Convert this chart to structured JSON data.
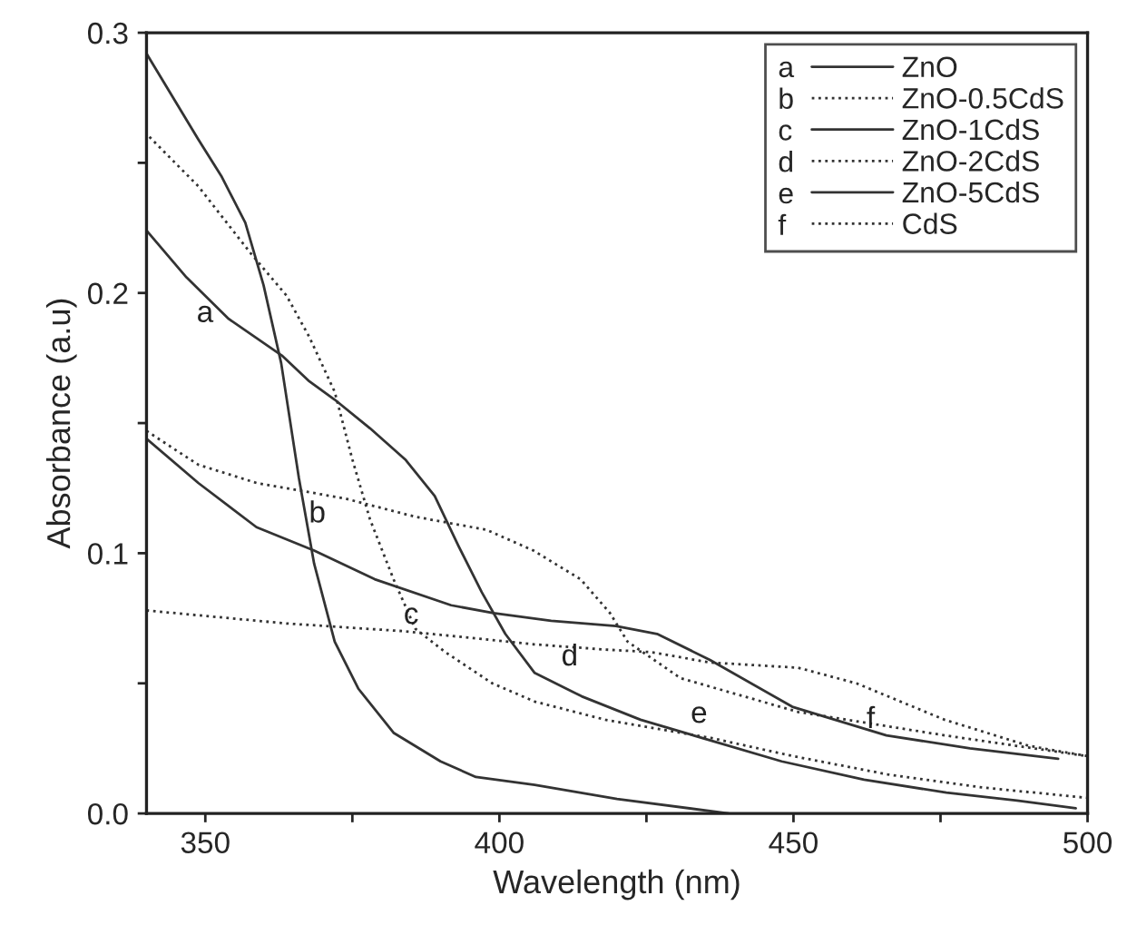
{
  "chart_data": {
    "type": "line",
    "xlabel": "Wavelength (nm)",
    "ylabel": "Absorbance (a.u)",
    "xlim": [
      340,
      500
    ],
    "ylim": [
      0,
      0.3
    ],
    "xticks": [
      350,
      {
        "value": 375,
        "label": null
      },
      400,
      {
        "value": 425,
        "label": null
      },
      450,
      {
        "value": 475,
        "label": null
      },
      500
    ],
    "yticks": [
      {
        "value": 0,
        "label": "0.0"
      },
      {
        "value": 0.05,
        "label": null
      },
      0.1,
      {
        "value": 0.15,
        "label": null
      },
      0.2,
      {
        "value": 0.25,
        "label": null
      },
      0.3
    ],
    "grid": false,
    "legend": "top right",
    "marker": "none",
    "annotations": [
      {
        "text": "a",
        "x": 346.8,
        "y": 0.206
      },
      {
        "text": "b",
        "x": 365.9,
        "y": 0.129
      },
      {
        "text": "c",
        "x": 382,
        "y": 0.09
      },
      {
        "text": "d",
        "x": 408.8,
        "y": 0.074
      },
      {
        "text": "e",
        "x": 430.8,
        "y": 0.052
      },
      {
        "text": "f",
        "x": 460.7,
        "y": 0.05
      }
    ],
    "series": [
      {
        "name": "ZnO",
        "color": "#333333",
        "line_style": "solid",
        "x": [
          340,
          346.8,
          354,
          363,
          367.7,
          372,
          378,
          384,
          389,
          393,
          397,
          401,
          406,
          414,
          424,
          436,
          448,
          462,
          476,
          488,
          498
        ],
        "values": [
          0.224,
          0.206,
          0.19,
          0.176,
          0.166,
          0.159,
          0.148,
          0.136,
          0.122,
          0.103,
          0.085,
          0.069,
          0.054,
          0.045,
          0.036,
          0.028,
          0.02,
          0.013,
          0.008,
          0.005,
          0.002
        ]
      },
      {
        "name": "ZnO-0.5CdS",
        "color": "#333333",
        "line_style": "dotted",
        "x": [
          340.5,
          348.8,
          357.8,
          363.8,
          367.7,
          372,
          375,
          378,
          382,
          385.7,
          390.8,
          398.8,
          406,
          418,
          436,
          450,
          466,
          482,
          500
        ],
        "values": [
          0.26,
          0.241,
          0.215,
          0.199,
          0.183,
          0.162,
          0.136,
          0.113,
          0.09,
          0.071,
          0.062,
          0.05,
          0.043,
          0.036,
          0.029,
          0.022,
          0.015,
          0.01,
          0.006
        ]
      },
      {
        "name": "ZnO-1CdS",
        "color": "#333333",
        "line_style": "solid",
        "x": [
          340,
          348.8,
          352.7,
          356.8,
          359.9,
          362.9,
          365.9,
          368.5,
          372,
          376,
          382,
          390,
          396,
          406,
          420,
          439
        ],
        "values": [
          0.292,
          0.259,
          0.245,
          0.227,
          0.203,
          0.173,
          0.129,
          0.096,
          0.066,
          0.048,
          0.031,
          0.02,
          0.014,
          0.011,
          0.0056,
          0
        ]
      },
      {
        "name": "ZnO-2CdS",
        "color": "#333333",
        "line_style": "dotted",
        "x": [
          340,
          348.8,
          358.7,
          373.8,
          385.7,
          397.8,
          405.8,
          413.8,
          418.8,
          421.8,
          430.8,
          450.8,
          475.7,
          500
        ],
        "values": [
          0.147,
          0.134,
          0.127,
          0.121,
          0.114,
          0.109,
          0.101,
          0.09,
          0.077,
          0.066,
          0.052,
          0.039,
          0.03,
          0.022
        ]
      },
      {
        "name": "ZnO-5CdS",
        "color": "#333333",
        "line_style": "solid",
        "x": [
          340,
          348.8,
          358.7,
          368.5,
          378.8,
          391.8,
          399,
          408.8,
          419.8,
          426.8,
          435.8,
          449.8,
          465.8,
          480,
          495
        ],
        "values": [
          0.144,
          0.127,
          0.11,
          0.101,
          0.09,
          0.08,
          0.077,
          0.074,
          0.072,
          0.069,
          0.059,
          0.041,
          0.03,
          0.025,
          0.021
        ]
      },
      {
        "name": "CdS",
        "color": "#333333",
        "line_style": "dotted",
        "x": [
          340,
          363.8,
          384,
          405.8,
          417.8,
          425.8,
          435.8,
          450.8,
          460.7,
          475.7,
          490,
          500
        ],
        "values": [
          0.078,
          0.073,
          0.07,
          0.065,
          0.063,
          0.062,
          0.058,
          0.056,
          0.05,
          0.036,
          0.026,
          0.022
        ]
      }
    ]
  }
}
